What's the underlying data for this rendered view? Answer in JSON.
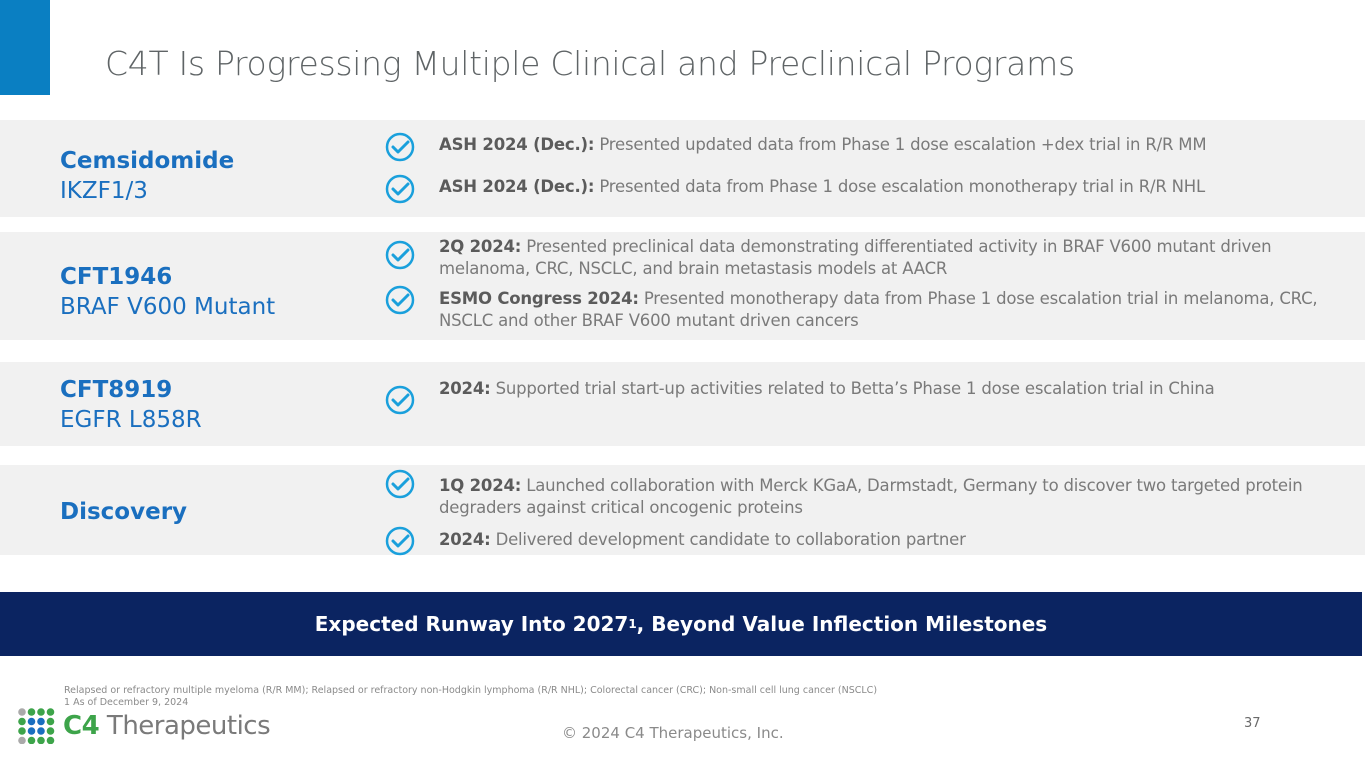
{
  "title": "C4T Is Progressing Multiple Clinical and Preclinical Programs",
  "programs": [
    {
      "name": "Cemsidomide",
      "target": "IKZF1/3",
      "items": [
        {
          "label": "ASH 2024 (Dec.):",
          "text": " Presented updated data from Phase 1 dose escalation +dex trial in R/R MM"
        },
        {
          "label": "ASH 2024 (Dec.):",
          "text": " Presented data from Phase 1 dose escalation monotherapy trial in R/R NHL"
        }
      ]
    },
    {
      "name": "CFT1946",
      "target": "BRAF V600 Mutant",
      "items": [
        {
          "label": "2Q 2024:",
          "text": " Presented preclinical data demonstrating differentiated activity in BRAF V600 mutant driven  melanoma, CRC, NSCLC, and brain metastasis models at AACR"
        },
        {
          "label": "ESMO Congress 2024:",
          "text": " Presented monotherapy data from Phase 1 dose escalation trial in melanoma, CRC, NSCLC and other BRAF V600 mutant driven cancers"
        }
      ]
    },
    {
      "name": "CFT8919",
      "target": "EGFR L858R",
      "items": [
        {
          "label": "2024:",
          "text": " Supported trial start-up activities related to Betta’s Phase 1 dose escalation trial in China"
        }
      ]
    },
    {
      "name": "Discovery",
      "target": "",
      "items": [
        {
          "label": "1Q 2024:",
          "text": " Launched collaboration with Merck KGaA, Darmstadt, Germany to discover two targeted protein degraders against critical oncogenic proteins"
        },
        {
          "label": "2024:",
          "text": " Delivered development candidate to collaboration partner"
        }
      ]
    }
  ],
  "banner": {
    "text": "Expected Runway Into 2027",
    "sup": "1",
    "rest": ", Beyond Value Inflection Milestones"
  },
  "footnotes": [
    "Relapsed or refractory multiple myeloma (R/R MM); Relapsed or refractory non-Hodgkin lymphoma (R/R NHL); Colorectal cancer (CRC); Non-small cell lung cancer (NSCLC)",
    "1  As of December 9, 2024"
  ],
  "logo": {
    "c4": "C4",
    "rest": " Therapeutics"
  },
  "copyright": "© 2024 C4 Therapeutics, Inc.",
  "page_number": "37",
  "colors": {
    "accent": "#0a7fc2",
    "program": "#1a6fbf",
    "banner": "#0b2461",
    "check": "#1aa0dc"
  }
}
